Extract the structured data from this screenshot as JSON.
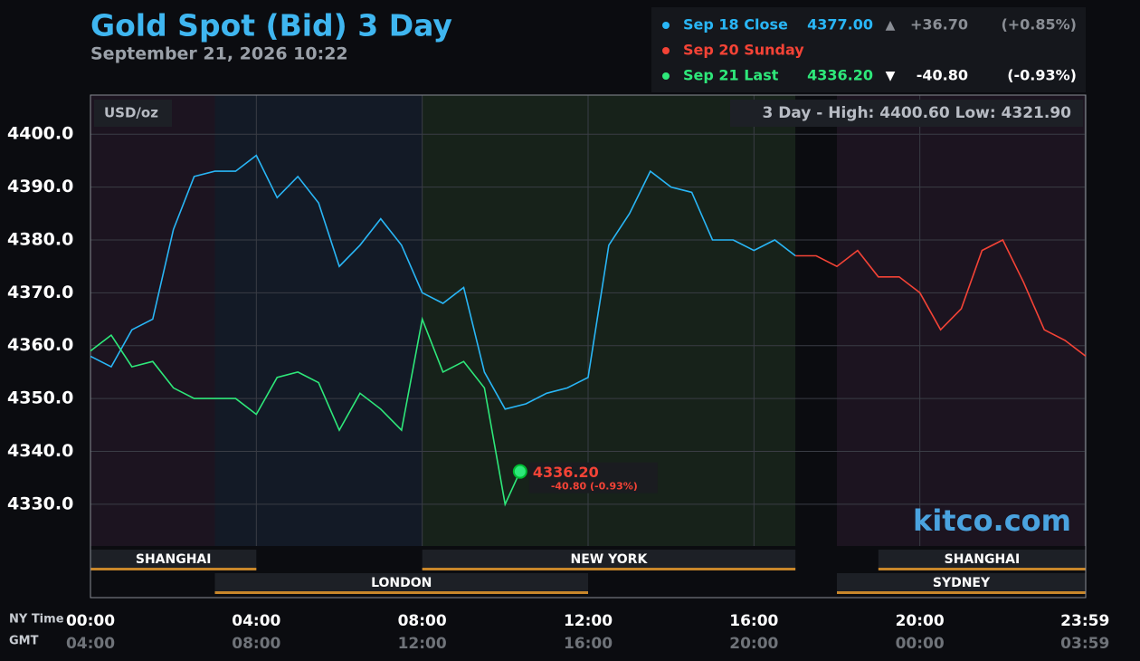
{
  "chart_data": {
    "type": "line",
    "title": "Gold Spot (Bid) 3 Day",
    "subtitle": "September 21, 2026 10:22",
    "unit_label": "USD/oz",
    "range_label": "3 Day - High: 4400.60  Low: 4321.90",
    "watermark": "kitco.com",
    "summary": [
      {
        "label": "Sep 18 Close",
        "price": "4377.00",
        "change": "+36.70",
        "change_pct": "(+0.85%)"
      },
      {
        "label": "Sep 20 Sunday"
      },
      {
        "label": "Sep 21 Last",
        "price": "4336.20",
        "change": "-40.80",
        "change_pct": "(-0.93%)"
      }
    ],
    "callout": {
      "price": "4336.20",
      "change": "-40.80 (-0.93%)"
    },
    "series": [
      {
        "name": "Sep 18 Close",
        "color": "#29b6f6",
        "x": [
          0,
          0.5,
          1,
          1.5,
          2,
          2.5,
          3,
          3.5,
          4,
          4.5,
          5,
          5.5,
          6,
          6.5,
          7,
          7.5,
          8,
          8.5,
          9,
          9.5,
          10,
          10.5,
          11,
          11.5,
          12,
          12.5,
          13,
          13.5,
          14,
          14.5,
          15,
          15.5,
          16,
          16.5,
          17
        ],
        "values": [
          4358,
          4356,
          4363,
          4365,
          4382,
          4392,
          4393,
          4393,
          4396,
          4388,
          4392,
          4387,
          4375,
          4379,
          4384,
          4379,
          4370,
          4368,
          4371,
          4355,
          4348,
          4349,
          4351,
          4352,
          4354,
          4379,
          4385,
          4393,
          4390,
          4389,
          4380,
          4380,
          4378,
          4380,
          4377
        ]
      },
      {
        "name": "Sep 20 Sunday",
        "color": "#f44336",
        "x": [
          17,
          17.5,
          18,
          18.5,
          19,
          19.5,
          20,
          20.5,
          21,
          21.5,
          22,
          22.5,
          23,
          23.5,
          24
        ],
        "values": [
          4377,
          4377,
          4375,
          4378,
          4373,
          4373,
          4370,
          4363,
          4367,
          4378,
          4380,
          4372,
          4363,
          4361,
          4358
        ]
      },
      {
        "name": "Sep 21 Last",
        "color": "#2ee87a",
        "x": [
          0,
          0.5,
          1,
          1.5,
          2,
          2.5,
          3,
          3.5,
          4,
          4.5,
          5,
          5.5,
          6,
          6.5,
          7,
          7.5,
          8,
          8.5,
          9,
          9.5,
          10,
          10.36
        ],
        "values": [
          4359,
          4362,
          4356,
          4357,
          4352,
          4350,
          4350,
          4350,
          4347,
          4354,
          4355,
          4353,
          4344,
          4351,
          4348,
          4344,
          4365,
          4355,
          4357,
          4352,
          4330,
          4336.2
        ]
      }
    ],
    "xlim": [
      0,
      24
    ],
    "ylim": [
      4322.1,
      4407.4
    ],
    "yticks": [
      {
        "value": 4330,
        "label": "4330.0"
      },
      {
        "value": 4340,
        "label": "4340.0"
      },
      {
        "value": 4350,
        "label": "4350.0"
      },
      {
        "value": 4360,
        "label": "4360.0"
      },
      {
        "value": 4370,
        "label": "4370.0"
      },
      {
        "value": 4380,
        "label": "4380.0"
      },
      {
        "value": 4390,
        "label": "4390.0"
      },
      {
        "value": 4400,
        "label": "4400.0"
      }
    ],
    "xticks": [
      {
        "value": 0,
        "label": "00:00"
      },
      {
        "value": 4,
        "label": "04:00"
      },
      {
        "value": 8,
        "label": "08:00"
      },
      {
        "value": 12,
        "label": "12:00"
      },
      {
        "value": 16,
        "label": "16:00"
      },
      {
        "value": 20,
        "label": "20:00"
      },
      {
        "value": 23.983,
        "label": "23:59"
      }
    ],
    "x_axis_label": "NY Time",
    "x2_axis_label": "GMT",
    "x2_tick_labels": [
      "04:00",
      "08:00",
      "12:00",
      "16:00",
      "20:00",
      "00:00",
      "03:59"
    ],
    "sessions": [
      {
        "name": "SHANGHAI",
        "start": 0,
        "end": 4,
        "row": 0
      },
      {
        "name": "LONDON",
        "start": 3,
        "end": 12,
        "row": 1
      },
      {
        "name": "NEW YORK",
        "start": 8,
        "end": 17,
        "row": 0
      },
      {
        "name": "SYDNEY",
        "start": 18,
        "end": 24,
        "row": 1
      },
      {
        "name": "SHANGHAI",
        "start": 19,
        "end": 24,
        "row": 0
      }
    ],
    "grid": true
  }
}
